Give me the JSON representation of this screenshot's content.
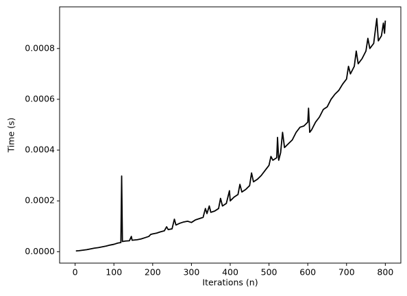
{
  "chart_data": {
    "type": "line",
    "xlabel": "Iterations (n)",
    "ylabel": "Time (s)",
    "color": "#000000",
    "x": [
      2,
      10,
      20,
      30,
      40,
      50,
      60,
      70,
      80,
      90,
      100,
      110,
      118,
      120,
      122,
      130,
      140,
      145,
      147,
      160,
      170,
      180,
      190,
      195,
      200,
      210,
      220,
      230,
      236,
      240,
      250,
      256,
      260,
      270,
      280,
      290,
      300,
      310,
      320,
      330,
      336,
      340,
      346,
      350,
      360,
      370,
      375,
      380,
      390,
      398,
      400,
      410,
      420,
      425,
      430,
      440,
      450,
      455,
      460,
      470,
      480,
      490,
      500,
      505,
      510,
      520,
      522,
      525,
      530,
      535,
      540,
      550,
      560,
      570,
      580,
      590,
      600,
      602,
      605,
      610,
      620,
      630,
      640,
      650,
      660,
      670,
      680,
      690,
      700,
      705,
      710,
      720,
      725,
      730,
      740,
      750,
      755,
      760,
      770,
      778,
      782,
      790,
      795,
      798,
      800
    ],
    "values": [
      3e-06,
      4e-06,
      6e-06,
      8e-06,
      1.1e-05,
      1.4e-05,
      1.6e-05,
      1.9e-05,
      2.2e-05,
      2.6e-05,
      2.9e-05,
      3.4e-05,
      3.6e-05,
      0.000298,
      4e-05,
      4.2e-05,
      4.3e-05,
      6e-05,
      4.5e-05,
      4.7e-05,
      5e-05,
      5.5e-05,
      6e-05,
      6.8e-05,
      7e-05,
      7.3e-05,
      7.8e-05,
      8.2e-05,
      9.8e-05,
      8.7e-05,
      9e-05,
      0.000128,
      0.000105,
      0.000112,
      0.000117,
      0.00012,
      0.000115,
      0.000125,
      0.00013,
      0.000135,
      0.00017,
      0.00015,
      0.00018,
      0.000155,
      0.00016,
      0.00017,
      0.00021,
      0.00018,
      0.00019,
      0.00024,
      0.0002,
      0.000215,
      0.000225,
      0.000265,
      0.000235,
      0.000245,
      0.00026,
      0.00031,
      0.000275,
      0.000285,
      0.0003,
      0.00032,
      0.00034,
      0.000375,
      0.00036,
      0.00037,
      0.00045,
      0.00036,
      0.00039,
      0.00047,
      0.00041,
      0.000425,
      0.00044,
      0.00047,
      0.00049,
      0.000495,
      0.00051,
      0.000565,
      0.00047,
      0.00048,
      0.00051,
      0.00053,
      0.00056,
      0.00057,
      0.0006,
      0.00062,
      0.000635,
      0.00066,
      0.00068,
      0.00073,
      0.0007,
      0.00073,
      0.00079,
      0.00074,
      0.00076,
      0.00079,
      0.00084,
      0.0008,
      0.00082,
      0.000918,
      0.00083,
      0.00085,
      0.0009,
      0.00086,
      0.00091
    ],
    "xlim": [
      -40,
      840
    ],
    "xticks": [
      0,
      100,
      200,
      300,
      400,
      500,
      600,
      700,
      800
    ],
    "ylim": [
      -4.5e-05,
      0.000964
    ],
    "yticks": [
      {
        "value": 0,
        "label": "0.0000"
      },
      {
        "value": 0.0002,
        "label": "0.0002"
      },
      {
        "value": 0.0004,
        "label": "0.0004"
      },
      {
        "value": 0.0006,
        "label": "0.0006"
      },
      {
        "value": 0.0008,
        "label": "0.0008"
      }
    ]
  }
}
